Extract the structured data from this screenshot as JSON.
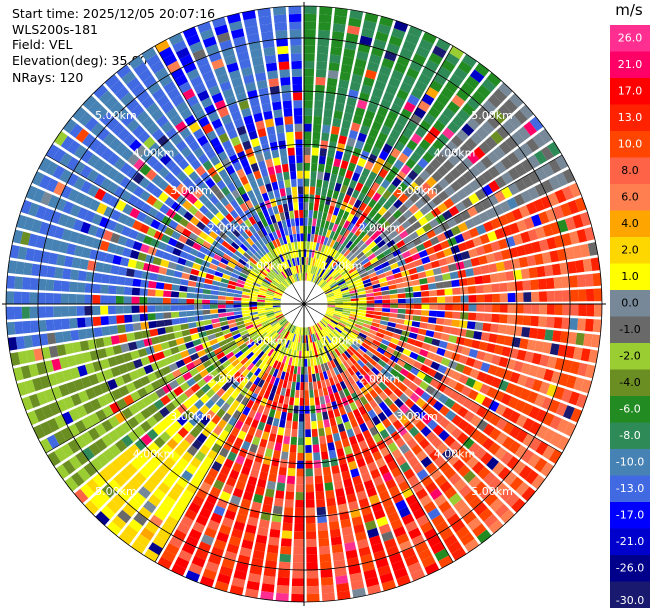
{
  "header": {
    "start_time": "Start time: 2025/12/05 20:07:16",
    "instrument": "WLS200s-181",
    "field": "Field: VEL",
    "elevation": "Elevation(deg): 35.00",
    "nrays": "NRays: 120"
  },
  "chart_data": {
    "type": "ppi",
    "field": "VEL",
    "unit": "m/s",
    "n_rays": 120,
    "range_rings_km": [
      1.0,
      2.0,
      3.0,
      4.0,
      5.0
    ],
    "range_ring_labels": [
      "1.00km",
      "2.00km",
      "3.00km",
      "4.00km",
      "5.00km"
    ],
    "max_range_km": 5.6,
    "colorbar": {
      "ticks": [
        "26.0",
        "21.0",
        "17.0",
        "13.0",
        "10.0",
        "8.0",
        "6.0",
        "4.0",
        "2.0",
        "1.0",
        "0.0",
        "-1.0",
        "-2.0",
        "-4.0",
        "-6.0",
        "-8.0",
        "-10.0",
        "-13.0",
        "-17.0",
        "-21.0",
        "-26.0",
        "-30.0"
      ],
      "colors": [
        "#ff2f92",
        "#ff0066",
        "#ff0000",
        "#ff2200",
        "#ff4500",
        "#ff6347",
        "#ff7f50",
        "#ffa500",
        "#ffd700",
        "#ffff00",
        "#778899",
        "#696969",
        "#9acd32",
        "#6b8e23",
        "#228b22",
        "#2e8b57",
        "#4682b4",
        "#4169e1",
        "#0000ff",
        "#0000cd",
        "#00008b",
        "#191970"
      ]
    },
    "sectors": [
      {
        "from_azimuth": 0,
        "to_azimuth": 40,
        "dominant_velocity": "-6.0 to -8.0"
      },
      {
        "from_azimuth": 40,
        "to_azimuth": 65,
        "dominant_velocity": "-1.0 to 0.0"
      },
      {
        "from_azimuth": 65,
        "to_azimuth": 150,
        "dominant_velocity": "8.0 to 13.0"
      },
      {
        "from_azimuth": 150,
        "to_azimuth": 210,
        "dominant_velocity": "8.0 to 17.0"
      },
      {
        "from_azimuth": 210,
        "to_azimuth": 230,
        "dominant_velocity": "2.0 to 4.0"
      },
      {
        "from_azimuth": 230,
        "to_azimuth": 260,
        "dominant_velocity": "-2.0 to -4.0"
      },
      {
        "from_azimuth": 260,
        "to_azimuth": 330,
        "dominant_velocity": "-10.0 to -13.0"
      },
      {
        "from_azimuth": 330,
        "to_azimuth": 360,
        "dominant_velocity": "-10.0 to -17.0"
      }
    ]
  }
}
